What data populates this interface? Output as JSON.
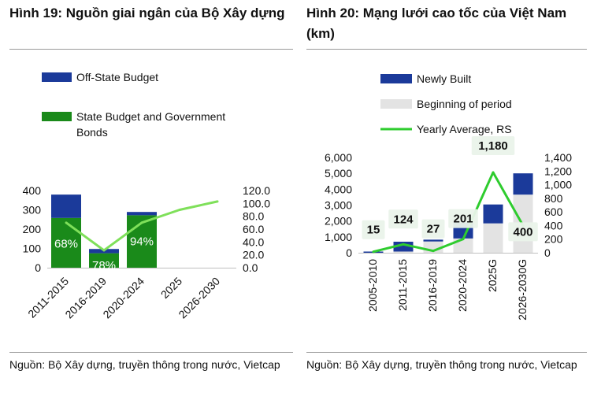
{
  "panel1": {
    "title": "Hình 19: Nguồn giai ngân của Bộ Xây dựng",
    "source": "Nguồn: Bộ Xây dựng, truyền thông trong nước, Vietcap"
  },
  "panel2": {
    "title": "Hình 20: Mạng lưới cao tốc của Việt Nam (km)",
    "source": "Nguồn: Bộ Xây dựng, truyền thông trong nước, Vietcap"
  },
  "colors": {
    "navy": "#1b3a9a",
    "green": "#1a8a1a",
    "line": "#7fe05a",
    "grey": "#e3e3e3",
    "bright_green": "#2ecc2e"
  },
  "chart_data": [
    {
      "type": "bar",
      "stacked": true,
      "categories": [
        "2011-2015",
        "2016-2019",
        "2020-2024",
        "2025",
        "2026-2030"
      ],
      "series": [
        {
          "name": "State Budget and Government Bonds",
          "values": [
            258,
            75,
            272,
            null,
            null
          ],
          "color": "#1a8a1a"
        },
        {
          "name": "Off-State Budget",
          "values": [
            121,
            22,
            17,
            null,
            null
          ],
          "color": "#1b3a9a"
        }
      ],
      "line_series": {
        "name": "",
        "values": [
          70,
          27,
          70,
          90,
          103
        ],
        "axis": "right",
        "color": "#7fe05a"
      },
      "data_labels": [
        "68%",
        "78%",
        "94%"
      ],
      "legend": [
        "Off-State Budget",
        "State Budget and Government Bonds"
      ],
      "ylim": [
        0,
        400
      ],
      "yticks": [
        "0",
        "100",
        "200",
        "300",
        "400"
      ],
      "y2lim": [
        0,
        120
      ],
      "y2ticks": [
        "0.0",
        "20.0",
        "40.0",
        "60.0",
        "80.0",
        "100.0",
        "120.0"
      ]
    },
    {
      "type": "bar",
      "stacked": true,
      "categories": [
        "2005-2010",
        "2011-2015",
        "2016-2019",
        "2020-2024",
        "2025G",
        "2026-2030G"
      ],
      "series": [
        {
          "name": "Beginning of period",
          "values": [
            0,
            75,
            710,
            900,
            1850,
            3660
          ],
          "color": "#e3e3e3"
        },
        {
          "name": "Newly Built",
          "values": [
            75,
            620,
            115,
            1010,
            1190,
            1340
          ],
          "color": "#1b3a9a"
        }
      ],
      "line_series": {
        "name": "Yearly Average, RS",
        "values": [
          15,
          124,
          27,
          201,
          1180,
          400
        ],
        "axis": "right",
        "color": "#2ecc2e"
      },
      "data_labels": [
        "15",
        "124",
        "27",
        "201",
        "1,180",
        "400"
      ],
      "legend": [
        "Newly Built",
        "Beginning of period",
        "Yearly Average, RS"
      ],
      "ylim": [
        0,
        6000
      ],
      "yticks": [
        "0",
        "1,000",
        "2,000",
        "3,000",
        "4,000",
        "5,000",
        "6,000"
      ],
      "y2lim": [
        0,
        1400
      ],
      "y2ticks": [
        "0",
        "200",
        "400",
        "600",
        "800",
        "1,000",
        "1,200",
        "1,400"
      ]
    }
  ]
}
